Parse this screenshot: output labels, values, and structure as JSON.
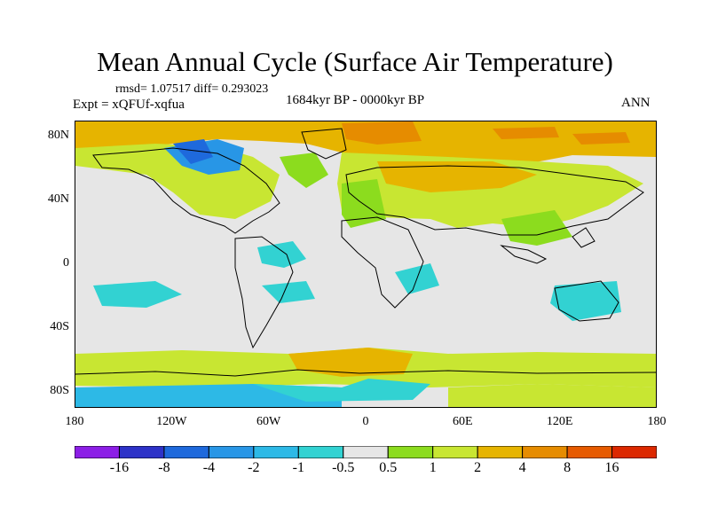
{
  "title": "Mean Annual Cycle (Surface Air Temperature)",
  "stats": "rmsd= 1.07517 diff= 0.293023",
  "experiment": "Expt = xQFUf-xqfua",
  "period": "1684kyr BP - 0000kyr BP",
  "season": "ANN",
  "lat_labels": [
    "80N",
    "40N",
    "0",
    "40S",
    "80S"
  ],
  "lat_values": [
    80,
    40,
    0,
    -40,
    -80
  ],
  "lon_labels": [
    "180",
    "120W",
    "60W",
    "0",
    "60E",
    "120E",
    "180"
  ],
  "lon_values": [
    -180,
    -120,
    -60,
    0,
    60,
    120,
    180
  ],
  "lat_range": [
    -90,
    90
  ],
  "lon_range": [
    -180,
    180
  ],
  "colorbar": {
    "labels": [
      "-16",
      "-8",
      "-4",
      "-2",
      "-1",
      "-0.5",
      "0.5",
      "1",
      "2",
      "4",
      "8",
      "16"
    ],
    "colors": [
      "#8c1ee6",
      "#2d32c8",
      "#1e69dc",
      "#2896e6",
      "#2db9e6",
      "#32d2d2",
      "#e6e6e6",
      "#8cdc1e",
      "#c8e632",
      "#e6b400",
      "#e68c00",
      "#e65a00",
      "#dc2800"
    ]
  }
}
